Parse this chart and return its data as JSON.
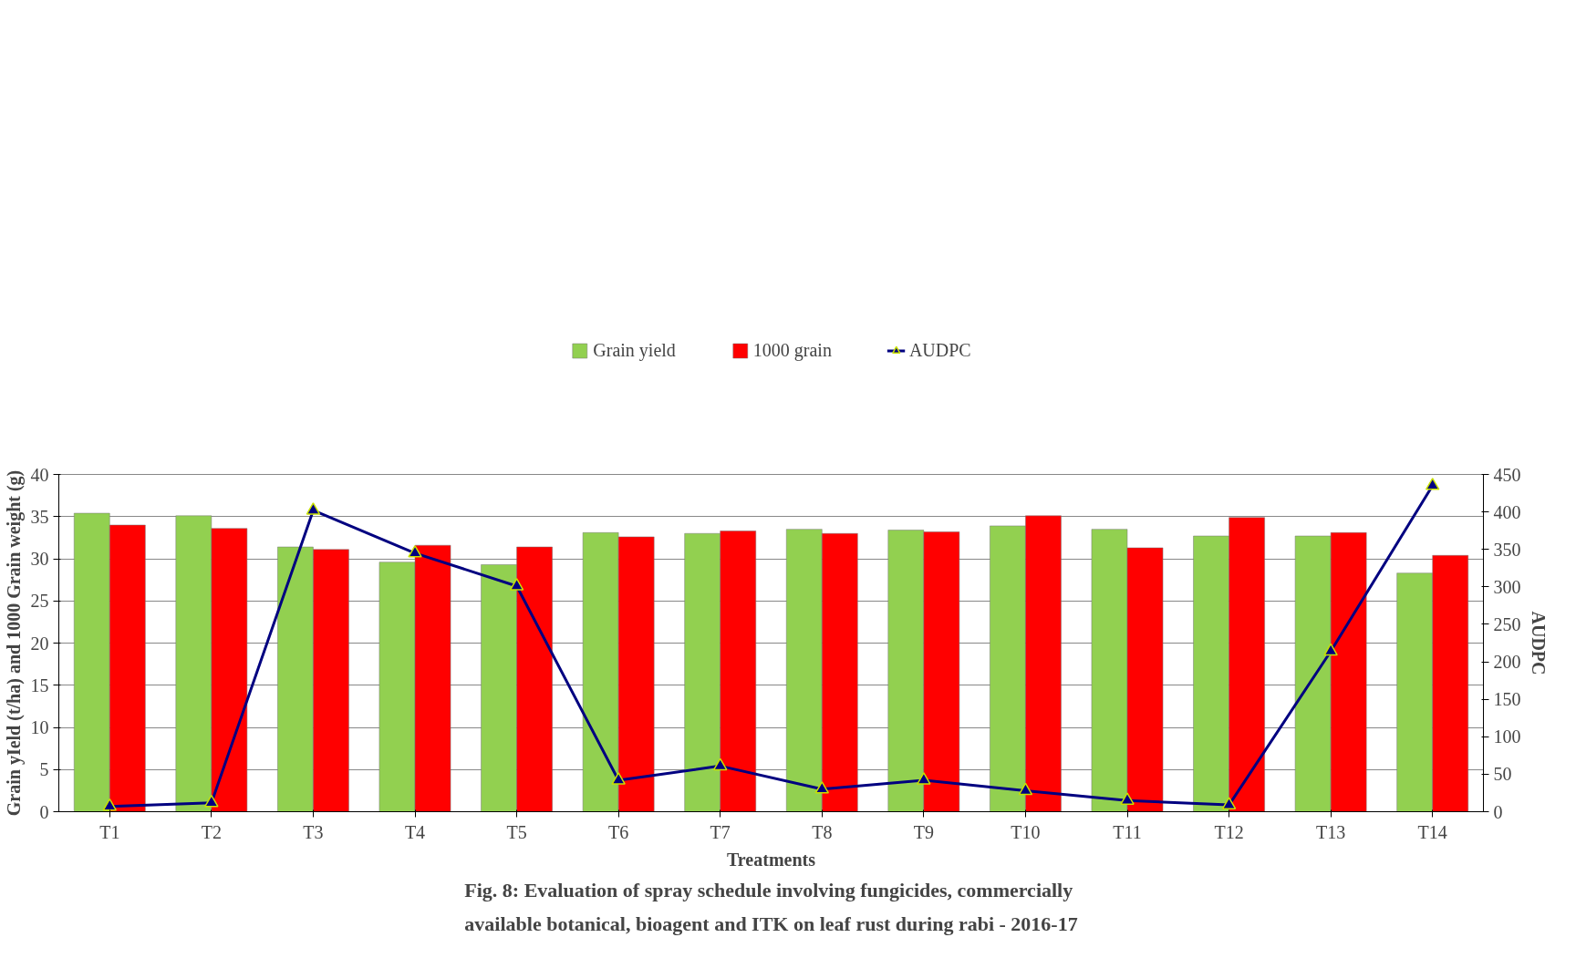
{
  "chart_data": {
    "type": "bar",
    "title": "Fig. 8: Evaluation  of spray schedule involving fungicides, commercially available botanical, bioagent and ITK on leaf rust during rabi - 2016-17",
    "xlabel": "Treatments",
    "ylabel": "Grain yIeld (t/ha) and 1000 Grain weight (g)",
    "y2label": "AUDPC",
    "categories": [
      "T1",
      "T2",
      "T3",
      "T4",
      "T5",
      "T6",
      "T7",
      "T8",
      "T9",
      "T10",
      "T11",
      "T12",
      "T13",
      "T14"
    ],
    "series": [
      {
        "name": "Grain yield",
        "color": "#92d050",
        "values": [
          35.4,
          35.1,
          31.4,
          29.6,
          29.3,
          33.1,
          33.0,
          33.5,
          33.4,
          33.9,
          33.5,
          32.7,
          32.7,
          28.3
        ]
      },
      {
        "name": "1000 grain",
        "color": "#ff0000",
        "values": [
          34.0,
          33.6,
          31.1,
          31.6,
          31.4,
          32.6,
          33.3,
          33.0,
          33.2,
          35.1,
          31.3,
          34.9,
          33.1,
          30.4
        ]
      },
      {
        "name": "AUDPC",
        "type": "line",
        "axis": "y2",
        "color": "#000080",
        "marker": "triangle",
        "values": [
          7,
          12,
          402,
          345,
          301,
          42,
          61,
          30,
          42,
          28,
          15,
          9,
          214,
          435
        ]
      }
    ],
    "ylim": [
      0,
      40
    ],
    "yticks": [
      0,
      5,
      10,
      15,
      20,
      25,
      30,
      35,
      40
    ],
    "y2lim": [
      0,
      450
    ],
    "y2ticks": [
      0,
      50,
      100,
      150,
      200,
      250,
      300,
      350,
      400,
      450
    ],
    "grid": "y",
    "legend": "top"
  }
}
